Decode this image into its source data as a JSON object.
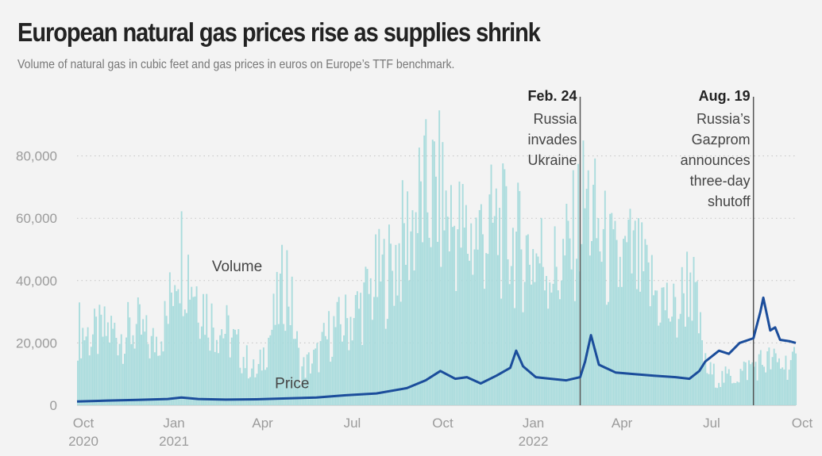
{
  "title": "European natural gas prices rise as supplies shrink",
  "subtitle": "Volume of natural gas in cubic feet and gas prices in euros on Europe’s TTF benchmark.",
  "colors": {
    "volume": "#aadcdd",
    "price": "#1b4d9b",
    "grid": "#c4c4c4",
    "annotation_line": "#555555",
    "background": "#f3f3f3"
  },
  "chart_data": {
    "type": "bar",
    "title": "European natural gas prices rise as supplies shrink",
    "subtitle": "Volume of natural gas in cubic feet and gas prices in euros on Europe’s TTF benchmark.",
    "xlim": [
      "2020-10-01",
      "2022-10-01"
    ],
    "ylim": [
      0,
      100000
    ],
    "grid": true,
    "y_ticks": [
      0,
      20000,
      40000,
      60000,
      80000
    ],
    "y_tick_labels": [
      "0",
      "20,000",
      "40,000",
      "60,000",
      "80,000"
    ],
    "x_ticks": [
      {
        "date": "2020-10-01",
        "label": "Oct",
        "year": "2020"
      },
      {
        "date": "2021-01-01",
        "label": "Jan",
        "year": "2021"
      },
      {
        "date": "2021-04-01",
        "label": "Apr",
        "year": ""
      },
      {
        "date": "2021-07-01",
        "label": "Jul",
        "year": ""
      },
      {
        "date": "2021-10-01",
        "label": "Oct",
        "year": ""
      },
      {
        "date": "2022-01-01",
        "label": "Jan",
        "year": "2022"
      },
      {
        "date": "2022-04-01",
        "label": "Apr",
        "year": ""
      },
      {
        "date": "2022-07-01",
        "label": "Jul",
        "year": ""
      },
      {
        "date": "2022-10-01",
        "label": "Oct",
        "year": ""
      }
    ],
    "series": [
      {
        "name": "Volume",
        "type": "bar",
        "color": "#aadcdd",
        "label_anchor": {
          "date": "2021-02-15",
          "y": 43000
        },
        "points": [
          [
            "2020-10-01",
            26000
          ],
          [
            "2020-10-15",
            23000
          ],
          [
            "2020-11-01",
            25000
          ],
          [
            "2020-11-15",
            24000
          ],
          [
            "2020-12-01",
            26000
          ],
          [
            "2020-12-15",
            20000
          ],
          [
            "2021-01-01",
            30000
          ],
          [
            "2021-01-10",
            55000
          ],
          [
            "2021-01-20",
            48000
          ],
          [
            "2021-02-01",
            38000
          ],
          [
            "2021-02-15",
            28000
          ],
          [
            "2021-03-01",
            25000
          ],
          [
            "2021-03-15",
            18000
          ],
          [
            "2021-04-01",
            10000
          ],
          [
            "2021-04-10",
            20000
          ],
          [
            "2021-04-20",
            30000
          ],
          [
            "2021-05-01",
            45000
          ],
          [
            "2021-05-15",
            12000
          ],
          [
            "2021-06-01",
            16000
          ],
          [
            "2021-06-15",
            25000
          ],
          [
            "2021-07-01",
            28000
          ],
          [
            "2021-07-15",
            33000
          ],
          [
            "2021-08-01",
            42000
          ],
          [
            "2021-08-15",
            46000
          ],
          [
            "2021-09-01",
            58000
          ],
          [
            "2021-09-15",
            68000
          ],
          [
            "2021-10-01",
            72000
          ],
          [
            "2021-10-15",
            62000
          ],
          [
            "2021-11-01",
            56000
          ],
          [
            "2021-11-15",
            58000
          ],
          [
            "2021-12-01",
            60000
          ],
          [
            "2021-12-15",
            55000
          ],
          [
            "2022-01-01",
            52000
          ],
          [
            "2022-01-15",
            50000
          ],
          [
            "2022-02-01",
            45000
          ],
          [
            "2022-02-15",
            55000
          ],
          [
            "2022-03-01",
            70000
          ],
          [
            "2022-03-15",
            56000
          ],
          [
            "2022-04-01",
            45000
          ],
          [
            "2022-04-15",
            50000
          ],
          [
            "2022-05-01",
            42000
          ],
          [
            "2022-05-15",
            36000
          ],
          [
            "2022-06-01",
            30000
          ],
          [
            "2022-06-15",
            45000
          ],
          [
            "2022-07-01",
            12000
          ],
          [
            "2022-07-15",
            9000
          ],
          [
            "2022-08-01",
            10000
          ],
          [
            "2022-08-15",
            13000
          ],
          [
            "2022-09-01",
            15000
          ],
          [
            "2022-09-15",
            14000
          ],
          [
            "2022-10-01",
            14000
          ]
        ]
      },
      {
        "name": "Price",
        "type": "line",
        "color": "#1b4d9b",
        "label_anchor": {
          "date": "2021-04-20",
          "y": 5500
        },
        "points": [
          [
            "2020-10-01",
            1200
          ],
          [
            "2020-11-01",
            1500
          ],
          [
            "2020-12-01",
            1700
          ],
          [
            "2021-01-01",
            2000
          ],
          [
            "2021-01-15",
            2500
          ],
          [
            "2021-02-01",
            2000
          ],
          [
            "2021-03-01",
            1800
          ],
          [
            "2021-04-01",
            1900
          ],
          [
            "2021-05-01",
            2200
          ],
          [
            "2021-06-01",
            2500
          ],
          [
            "2021-07-01",
            3200
          ],
          [
            "2021-08-01",
            3800
          ],
          [
            "2021-09-01",
            5500
          ],
          [
            "2021-09-20",
            8000
          ],
          [
            "2021-10-05",
            11000
          ],
          [
            "2021-10-20",
            8500
          ],
          [
            "2021-11-01",
            9000
          ],
          [
            "2021-11-15",
            7000
          ],
          [
            "2021-12-01",
            9500
          ],
          [
            "2021-12-15",
            12000
          ],
          [
            "2021-12-21",
            17500
          ],
          [
            "2021-12-28",
            12500
          ],
          [
            "2022-01-10",
            9000
          ],
          [
            "2022-01-25",
            8500
          ],
          [
            "2022-02-10",
            8000
          ],
          [
            "2022-02-24",
            9000
          ],
          [
            "2022-03-01",
            14000
          ],
          [
            "2022-03-07",
            22500
          ],
          [
            "2022-03-15",
            13000
          ],
          [
            "2022-04-01",
            10500
          ],
          [
            "2022-04-20",
            10000
          ],
          [
            "2022-05-10",
            9500
          ],
          [
            "2022-06-01",
            9000
          ],
          [
            "2022-06-15",
            8500
          ],
          [
            "2022-06-25",
            11000
          ],
          [
            "2022-07-01",
            14000
          ],
          [
            "2022-07-15",
            17500
          ],
          [
            "2022-07-25",
            16500
          ],
          [
            "2022-08-05",
            20000
          ],
          [
            "2022-08-19",
            21500
          ],
          [
            "2022-08-26",
            30000
          ],
          [
            "2022-08-29",
            34500
          ],
          [
            "2022-09-05",
            24000
          ],
          [
            "2022-09-10",
            25000
          ],
          [
            "2022-09-15",
            21000
          ],
          [
            "2022-09-25",
            20500
          ],
          [
            "2022-10-01",
            20000
          ]
        ]
      }
    ],
    "annotations": [
      {
        "date": "2022-02-24",
        "label": "Feb. 24",
        "lines": [
          "Russia",
          "invades",
          "Ukraine"
        ]
      },
      {
        "date": "2022-08-19",
        "label": "Aug. 19",
        "lines": [
          "Russia’s",
          "Gazprom",
          "announces",
          "three-day",
          "shutoff"
        ]
      }
    ]
  }
}
